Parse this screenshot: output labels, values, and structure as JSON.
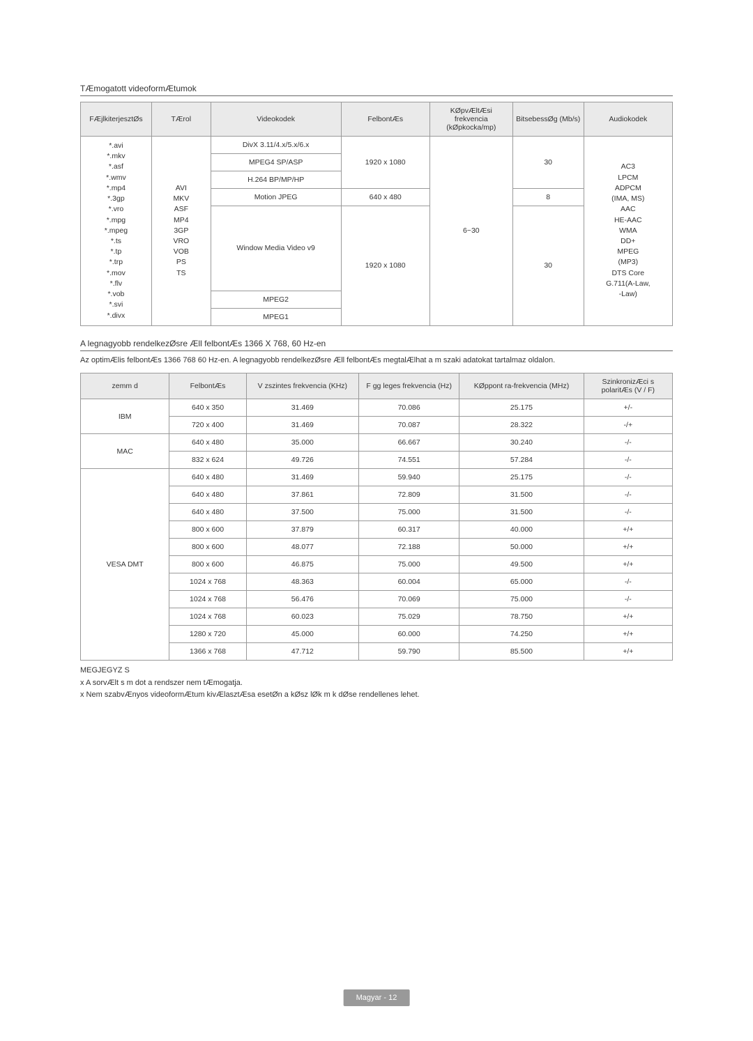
{
  "video": {
    "section_title": "TÆmogatott videoformÆtumok",
    "headers": [
      "FÆjlkiterjesztØs",
      "TÆrol",
      "Videokodek",
      "FelbontÆs",
      "KØpvÆltÆsi frekvencia (kØpkocka/mp)",
      "BitsebessØg (Mb/s)",
      "Audiokodek"
    ],
    "ext": "*.avi\n*.mkv\n*.asf\n*.wmv\n*.mp4\n*.3gp\n*.vro\n*.mpg\n*.mpeg\n*.ts\n*.tp\n*.trp\n*.mov\n*.flv\n*.vob\n*.svi\n*.divx",
    "container": "AVI\nMKV\nASF\nMP4\n3GP\nVRO\nVOB\nPS\nTS",
    "codecs": [
      "DivX 3.11/4.x/5.x/6.x",
      "MPEG4 SP/ASP",
      "H.264 BP/MP/HP",
      "Motion JPEG",
      "Window Media Video v9",
      "MPEG2",
      "MPEG1"
    ],
    "res": [
      "1920 x 1080",
      "640 x 480",
      "1920 x 1080"
    ],
    "fps": "6~30",
    "bitrate": [
      "30",
      "8",
      "30"
    ],
    "audio": "AC3\nLPCM\nADPCM\n(IMA, MS)\nAAC\nHE-AAC\nWMA\nDD+\nMPEG\n(MP3)\nDTS Core\nG.711(A-Law,\n-Law)"
  },
  "res": {
    "section_title": "A legnagyobb rendelkezØsre Æll  felbontÆs 1366 X 768, 60 Hz-en",
    "desc": "Az optimÆlis felbontÆs 1366   768 60 Hz-en. A legnagyobb rendelkezØsre Æll  felbontÆs megtalÆlhat  a m szaki adatokat tartalmaz  oldalon.",
    "headers": [
      "zemm d",
      "FelbontÆs",
      "V zszintes frekvencia (KHz)",
      "F gg leges frekvencia (Hz)",
      "KØppont ra-frekvencia (MHz)",
      "SzinkronizÆci s polaritÆs (V / F)"
    ],
    "modes": [
      {
        "name": "IBM",
        "rows": [
          [
            "640 x 350",
            "31.469",
            "70.086",
            "25.175",
            "+/-"
          ],
          [
            "720 x 400",
            "31.469",
            "70.087",
            "28.322",
            "-/+"
          ]
        ]
      },
      {
        "name": "MAC",
        "rows": [
          [
            "640 x 480",
            "35.000",
            "66.667",
            "30.240",
            "-/-"
          ],
          [
            "832 x 624",
            "49.726",
            "74.551",
            "57.284",
            "-/-"
          ]
        ]
      },
      {
        "name": "VESA DMT",
        "rows": [
          [
            "640 x 480",
            "31.469",
            "59.940",
            "25.175",
            "-/-"
          ],
          [
            "640 x 480",
            "37.861",
            "72.809",
            "31.500",
            "-/-"
          ],
          [
            "640 x 480",
            "37.500",
            "75.000",
            "31.500",
            "-/-"
          ],
          [
            "800 x 600",
            "37.879",
            "60.317",
            "40.000",
            "+/+"
          ],
          [
            "800 x 600",
            "48.077",
            "72.188",
            "50.000",
            "+/+"
          ],
          [
            "800 x 600",
            "46.875",
            "75.000",
            "49.500",
            "+/+"
          ],
          [
            "1024 x 768",
            "48.363",
            "60.004",
            "65.000",
            "-/-"
          ],
          [
            "1024 x 768",
            "56.476",
            "70.069",
            "75.000",
            "-/-"
          ],
          [
            "1024 x 768",
            "60.023",
            "75.029",
            "78.750",
            "+/+"
          ],
          [
            "1280 x 720",
            "45.000",
            "60.000",
            "74.250",
            "+/+"
          ],
          [
            "1366 x 768",
            "47.712",
            "59.790",
            "85.500",
            "+/+"
          ]
        ]
      }
    ]
  },
  "notes": {
    "title": "MEGJEGYZ S",
    "l1": "x A sorvÆlt s m dot a rendszer nem tÆmogatja.",
    "l2": "x Nem szabvÆnyos videoformÆtum kivÆlasztÆsa esetØn a kØsz lØk m k dØse rendellenes lehet."
  },
  "footer": "Magyar - 12"
}
